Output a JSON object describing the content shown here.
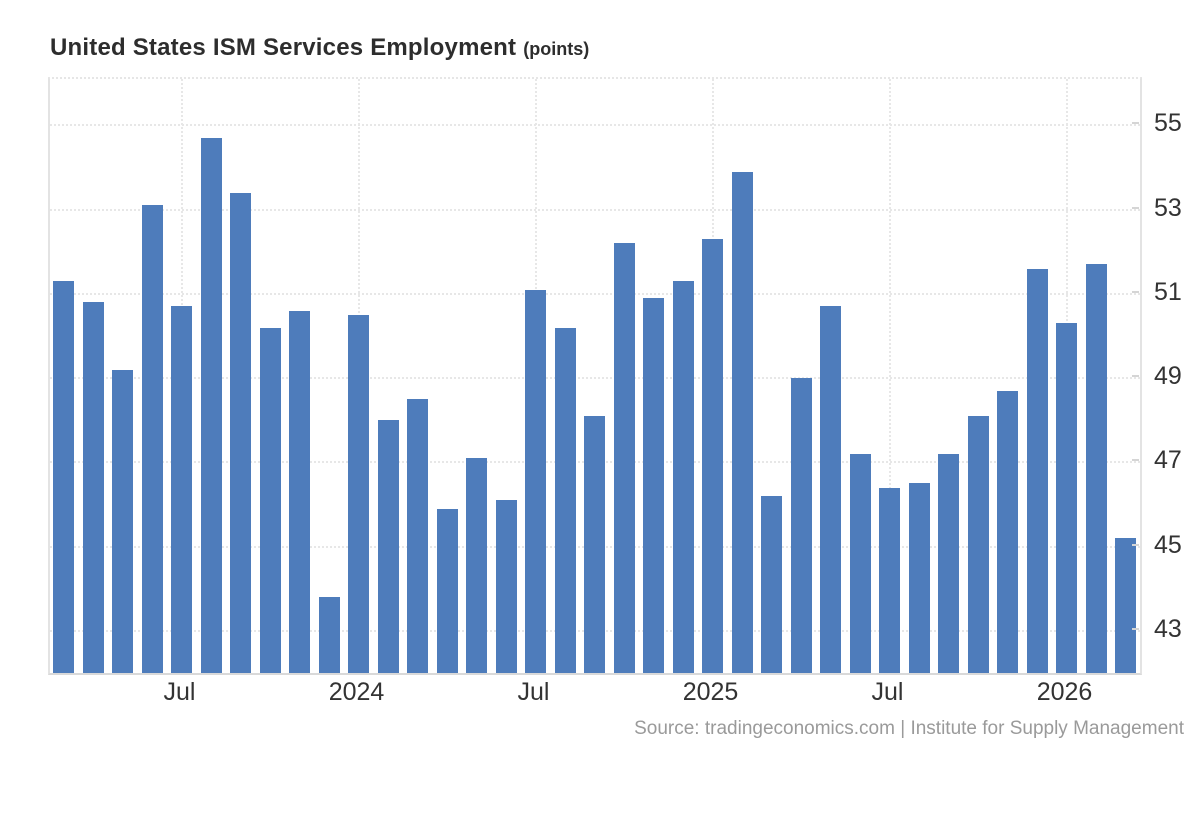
{
  "header": {
    "title": "United States ISM Services Employment",
    "unit": "(points)"
  },
  "footer": {
    "source": "Source: tradingeconomics.com | Institute for Supply Management"
  },
  "colors": {
    "bar": "#4e7cbb",
    "grid": "#e7e7e7",
    "frame_side": "#e3e3e3",
    "frame_bottom": "#d9d9d9",
    "axis_text": "#333333",
    "title_text": "#2d2d2d",
    "source_text": "#9a9a9a",
    "background": "#ffffff"
  },
  "chart_data": {
    "type": "bar",
    "title": "United States ISM Services Employment",
    "unit_label": "points",
    "series_name": "ISM Services Employment Index",
    "x": [
      "2023-03",
      "2023-04",
      "2023-05",
      "2023-06",
      "2023-07",
      "2023-08",
      "2023-09",
      "2023-10",
      "2023-11",
      "2023-12",
      "2024-01",
      "2024-02",
      "2024-03",
      "2024-04",
      "2024-05",
      "2024-06",
      "2024-07",
      "2024-08",
      "2024-09",
      "2024-10",
      "2024-11",
      "2024-12",
      "2025-01",
      "2025-02",
      "2025-03",
      "2025-04",
      "2025-05",
      "2025-06",
      "2025-07",
      "2025-08",
      "2025-09",
      "2025-10",
      "2025-11",
      "2025-12",
      "2026-01",
      "2026-02",
      "2026-03"
    ],
    "values": [
      51.3,
      50.8,
      49.2,
      53.1,
      50.7,
      54.7,
      53.4,
      50.2,
      50.6,
      43.8,
      50.5,
      48.0,
      48.5,
      45.9,
      47.1,
      46.1,
      51.1,
      50.2,
      48.1,
      52.2,
      50.9,
      51.3,
      52.3,
      53.9,
      46.2,
      49.0,
      50.7,
      47.2,
      46.4,
      46.5,
      47.2,
      48.1,
      48.7,
      51.6,
      50.3,
      51.7,
      45.2
    ],
    "y_ticks": [
      55,
      53,
      51,
      49,
      47,
      45,
      43
    ],
    "x_tick_labels": [
      "Jul",
      "2024",
      "Jul",
      "2025",
      "Jul",
      "2026"
    ],
    "x_tick_positions": [
      4,
      10,
      16,
      22,
      28,
      34
    ],
    "ylim": [
      42.0,
      56.1
    ],
    "xlabel": "",
    "ylabel": "",
    "grid": "dotted",
    "legend": false
  }
}
